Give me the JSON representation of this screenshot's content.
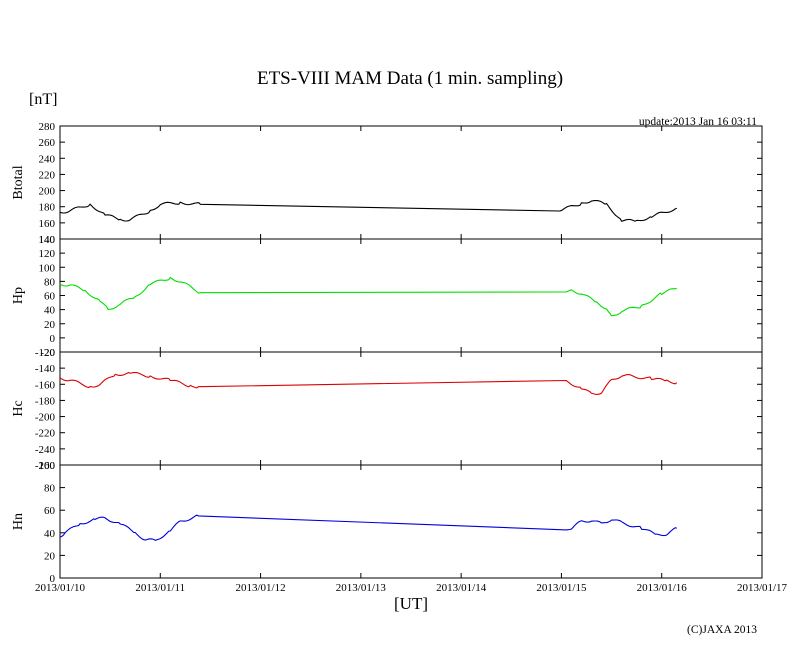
{
  "chart_data": {
    "type": "line",
    "title": "ETS-VIII MAM Data (1 min. sampling)",
    "unit_label": "[nT]",
    "update_text": "update:2013 Jan 16 03:11",
    "xlabel": "[UT]",
    "copyright": "(C)JAXA 2013",
    "x_range": [
      "2013/01/10",
      "2013/01/17"
    ],
    "x_tick_labels": [
      "2013/01/10",
      "2013/01/11",
      "2013/01/12",
      "2013/01/13",
      "2013/01/14",
      "2013/01/15",
      "2013/01/16",
      "2013/01/17"
    ],
    "grid": false,
    "panels": [
      {
        "label": "Btotal",
        "color": "#000000",
        "ylim": [
          140,
          280
        ],
        "yticks": [
          140,
          160,
          180,
          200,
          220,
          240,
          260,
          280
        ],
        "x": [
          0.0,
          0.1,
          0.3,
          0.45,
          0.6,
          0.7,
          0.9,
          1.0,
          1.2,
          1.4,
          4.98,
          5.0,
          5.2,
          5.3,
          5.45,
          5.6,
          5.75,
          5.9,
          6.0,
          6.15
        ],
        "y": [
          173,
          175,
          183,
          170,
          164,
          164,
          175,
          183,
          185,
          183,
          174,
          176,
          184,
          188,
          183,
          163,
          162,
          168,
          172,
          178
        ]
      },
      {
        "label": "Hp",
        "color": "#00e000",
        "ylim": [
          -20,
          140
        ],
        "yticks": [
          -20,
          0,
          20,
          40,
          60,
          80,
          100,
          120,
          140
        ],
        "x": [
          0.0,
          0.1,
          0.25,
          0.4,
          0.48,
          0.6,
          0.75,
          0.9,
          1.1,
          1.2,
          1.4,
          5.05,
          5.1,
          5.2,
          5.35,
          5.45,
          5.5,
          5.6,
          5.8,
          6.0,
          6.15
        ],
        "y": [
          76,
          75,
          67,
          52,
          40,
          48,
          58,
          76,
          85,
          80,
          64,
          66,
          67,
          63,
          50,
          42,
          30,
          38,
          45,
          63,
          70
        ]
      },
      {
        "label": "Hc",
        "color": "#dd0000",
        "ylim": [
          -260,
          -120
        ],
        "yticks": [
          -260,
          -240,
          -220,
          -200,
          -180,
          -160,
          -140,
          -120
        ],
        "x": [
          0.0,
          0.1,
          0.3,
          0.4,
          0.55,
          0.7,
          0.9,
          1.1,
          1.3,
          1.38,
          5.05,
          5.2,
          5.3,
          5.4,
          5.5,
          5.6,
          5.7,
          5.9,
          6.05,
          6.15
        ],
        "y": [
          -152,
          -155,
          -163,
          -160,
          -148,
          -146,
          -150,
          -155,
          -162,
          -163,
          -156,
          -165,
          -172,
          -170,
          -155,
          -149,
          -150,
          -153,
          -156,
          -158
        ]
      },
      {
        "label": "Hn",
        "color": "#0000dd",
        "ylim": [
          0,
          100
        ],
        "yticks": [
          0,
          20,
          40,
          60,
          80,
          100
        ],
        "x": [
          0.0,
          0.05,
          0.2,
          0.35,
          0.45,
          0.6,
          0.75,
          0.85,
          0.95,
          1.1,
          1.2,
          1.38,
          5.05,
          5.1,
          5.2,
          5.3,
          5.4,
          5.5,
          5.6,
          5.8,
          5.95,
          6.05,
          6.15
        ],
        "y": [
          36,
          40,
          48,
          52,
          53,
          48,
          40,
          34,
          33,
          42,
          50,
          55,
          42,
          44,
          50,
          51,
          48,
          52,
          49,
          44,
          38,
          39,
          44
        ]
      }
    ]
  }
}
